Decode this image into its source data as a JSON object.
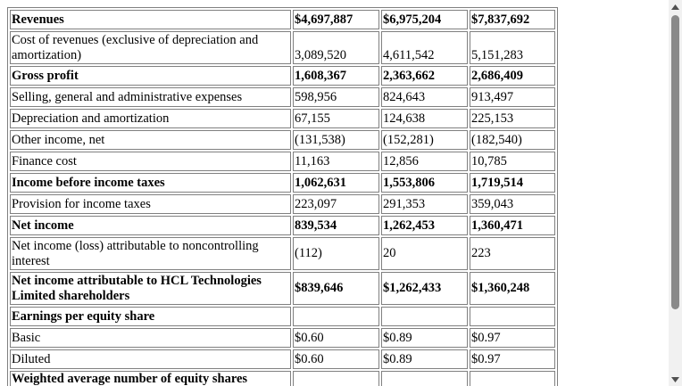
{
  "table": {
    "rows": [
      {
        "label": "Revenues",
        "v1": "$4,697,887",
        "v2": "$6,975,204",
        "v3": "$7,837,692",
        "bold": true
      },
      {
        "label": "Cost of revenues (exclusive of depreciation and amortization)",
        "v1": "3,089,520",
        "v2": "4,611,542",
        "v3": "5,151,283",
        "bold": false
      },
      {
        "label": "Gross profit",
        "v1": "1,608,367",
        "v2": "2,363,662",
        "v3": "2,686,409",
        "bold": true
      },
      {
        "label": "Selling, general and administrative expenses",
        "v1": "598,956",
        "v2": "824,643",
        "v3": "913,497",
        "bold": false
      },
      {
        "label": "Depreciation and amortization",
        "v1": "67,155",
        "v2": "124,638",
        "v3": "225,153",
        "bold": false
      },
      {
        "label": "Other income, net",
        "v1": "(131,538)",
        "v2": "(152,281)",
        "v3": "(182,540)",
        "bold": false
      },
      {
        "label": "Finance cost",
        "v1": "11,163",
        "v2": "12,856",
        "v3": "10,785",
        "bold": false
      },
      {
        "label": "Income before income taxes",
        "v1": "1,062,631",
        "v2": "1,553,806",
        "v3": "1,719,514",
        "bold": true
      },
      {
        "label": "Provision for income taxes",
        "v1": "223,097",
        "v2": "291,353",
        "v3": "359,043",
        "bold": false
      },
      {
        "label": "Net income",
        "v1": "839,534",
        "v2": "1,262,453",
        "v3": "1,360,471",
        "bold": true
      },
      {
        "label": "Net income (loss) attributable to noncontrolling interest",
        "v1": "(112)",
        "v2": "20",
        "v3": "223",
        "bold": false
      },
      {
        "label": "Net income attributable to HCL Technologies Limited shareholders",
        "v1": "$839,646",
        "v2": "$1,262,433",
        "v3": "$1,360,248",
        "bold": true
      },
      {
        "label": "Earnings per equity share",
        "v1": "",
        "v2": "",
        "v3": "",
        "bold": true
      },
      {
        "label": "Basic",
        "v1": "$0.60",
        "v2": "$0.89",
        "v3": "$0.97",
        "bold": false
      },
      {
        "label": "Diluted",
        "v1": "$0.60",
        "v2": "$0.89",
        "v3": "$0.97",
        "bold": false
      },
      {
        "label": "Weighted average number of equity shares",
        "v1": "",
        "v2": "",
        "v3": "",
        "bold": true
      }
    ]
  },
  "scrollbar": {
    "up_icon": "triangle-up-icon",
    "down_icon": "triangle-down-icon"
  }
}
